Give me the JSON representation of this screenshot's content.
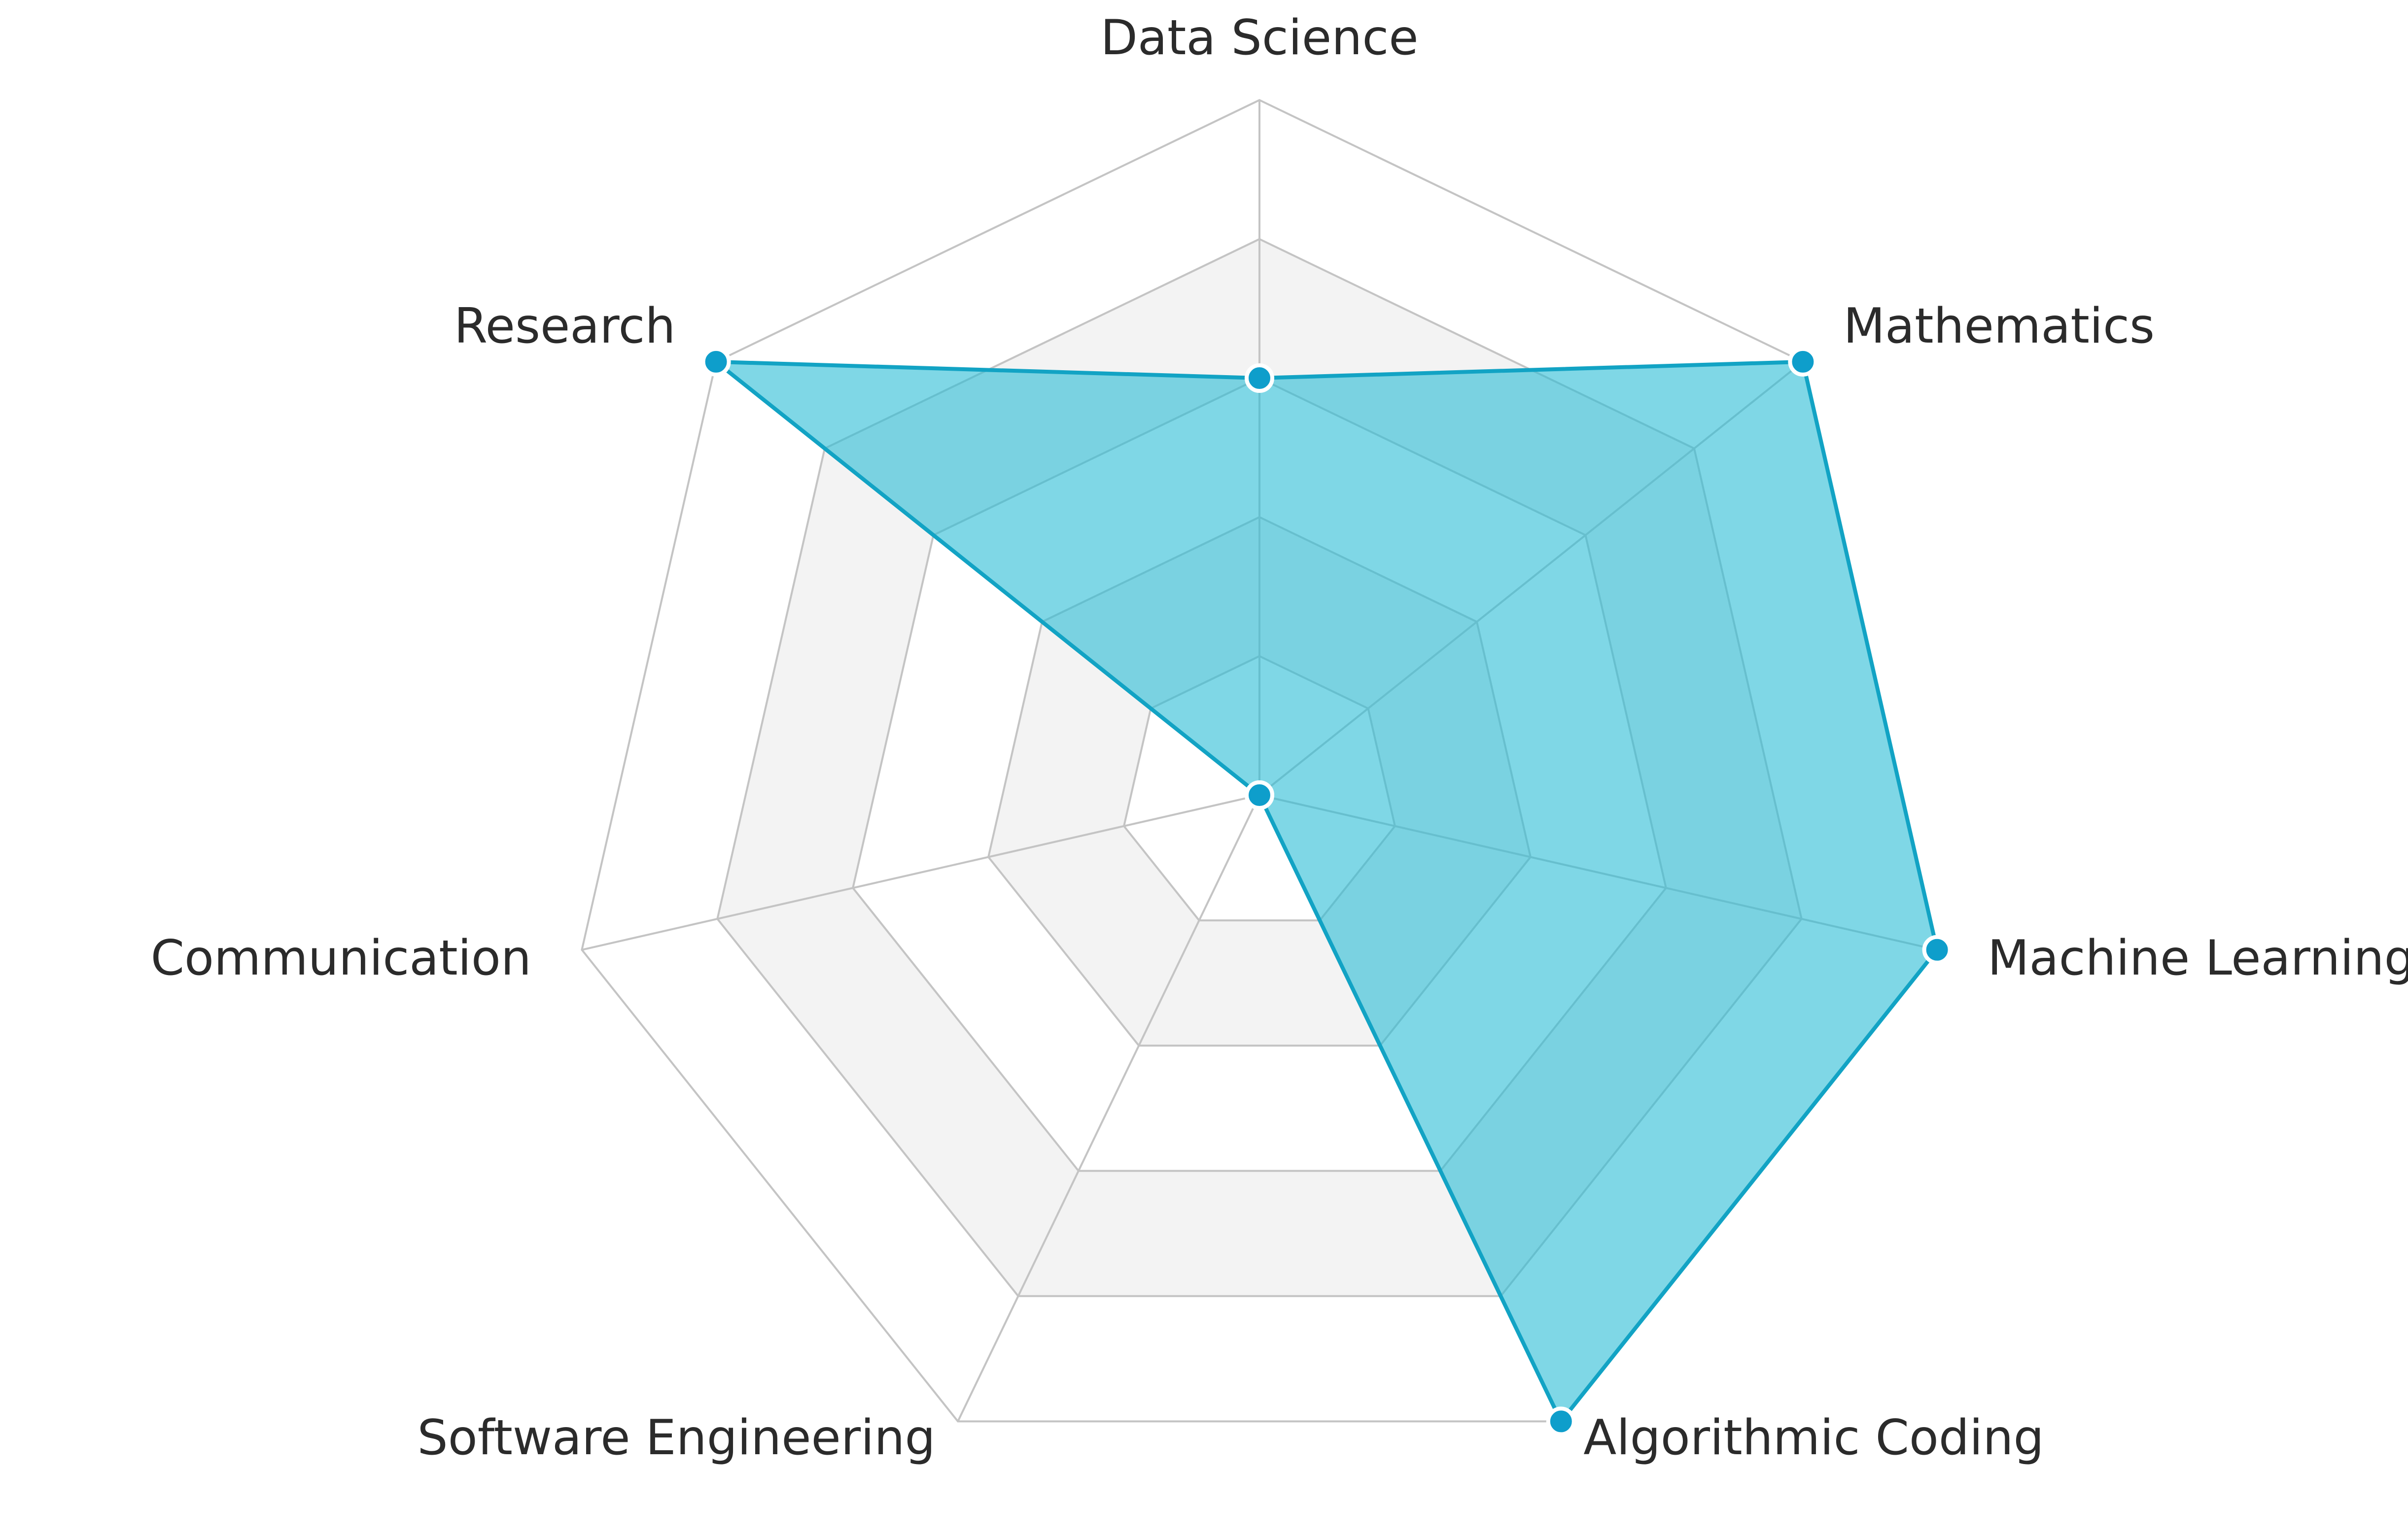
{
  "chart_data": {
    "type": "radar",
    "axes": [
      "Data Science",
      "Mathematics",
      "Machine Learning",
      "Algorithmic Coding",
      "Software Engineering",
      "Communication",
      "Research"
    ],
    "series": [
      {
        "values": [
          3,
          5,
          5,
          5,
          0,
          0,
          5
        ]
      }
    ],
    "range": [
      0,
      5
    ],
    "levels": 5,
    "grid": true,
    "colors": {
      "fill": "#29bcd6",
      "fill_opacity": 0.6,
      "line": "#12a3c4",
      "point": "#0e9ecb",
      "grid_line": "#c4c4c4",
      "band": "#f3f3f3"
    }
  }
}
